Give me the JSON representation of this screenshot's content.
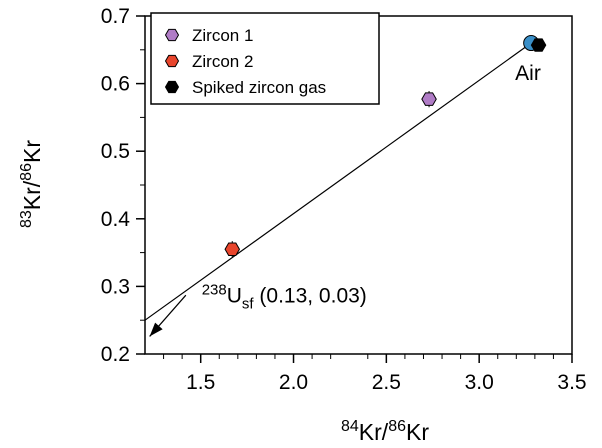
{
  "chart_data": {
    "type": "scatter",
    "xlabel": {
      "sup1": "84",
      "main1": "Kr/",
      "sup2": "86",
      "main2": "Kr"
    },
    "ylabel": {
      "sup1": "83",
      "main1": "Kr/",
      "sup2": "86",
      "main2": "Kr"
    },
    "xlim": [
      1.2,
      3.5
    ],
    "ylim": [
      0.2,
      0.7
    ],
    "xticks": [
      1.5,
      2.0,
      2.5,
      3.0,
      3.5
    ],
    "xtick_labels": [
      "1.5",
      "2.0",
      "2.5",
      "3.0",
      "3.5"
    ],
    "yticks": [
      0.2,
      0.3,
      0.4,
      0.5,
      0.6,
      0.7
    ],
    "ytick_labels": [
      "0.2",
      "0.3",
      "0.4",
      "0.5",
      "0.6",
      "0.7"
    ],
    "grid": false,
    "legend_position": "top-left",
    "series": [
      {
        "name": "Zircon 1",
        "color": "#b07cc6",
        "marker": "hexagon",
        "points": [
          {
            "x": 2.73,
            "y": 0.577,
            "yerr": 0.012
          }
        ]
      },
      {
        "name": "Zircon 2",
        "color": "#e8452c",
        "marker": "hexagon",
        "points": [
          {
            "x": 1.67,
            "y": 0.355,
            "yerr": 0.012
          }
        ]
      },
      {
        "name": "Spiked zircon gas",
        "color": "#000000",
        "marker": "hexagon",
        "points": [
          {
            "x": 3.32,
            "y": 0.657
          }
        ]
      }
    ],
    "reference_point": {
      "label": "Air",
      "x": 3.28,
      "y": 0.66,
      "color": "#3a8fc8"
    },
    "mixing_line": {
      "x1": 1.2,
      "y1": 0.25,
      "x2": 3.28,
      "y2": 0.66
    },
    "arrow": {
      "x1": 1.42,
      "y1": 0.287,
      "x2": 1.225,
      "y2": 0.226
    },
    "annotation": {
      "sup": "238",
      "main": "U",
      "sub": "sf",
      "rest": " (0.13, 0.03)",
      "x": 1.57,
      "y": 0.288
    }
  }
}
